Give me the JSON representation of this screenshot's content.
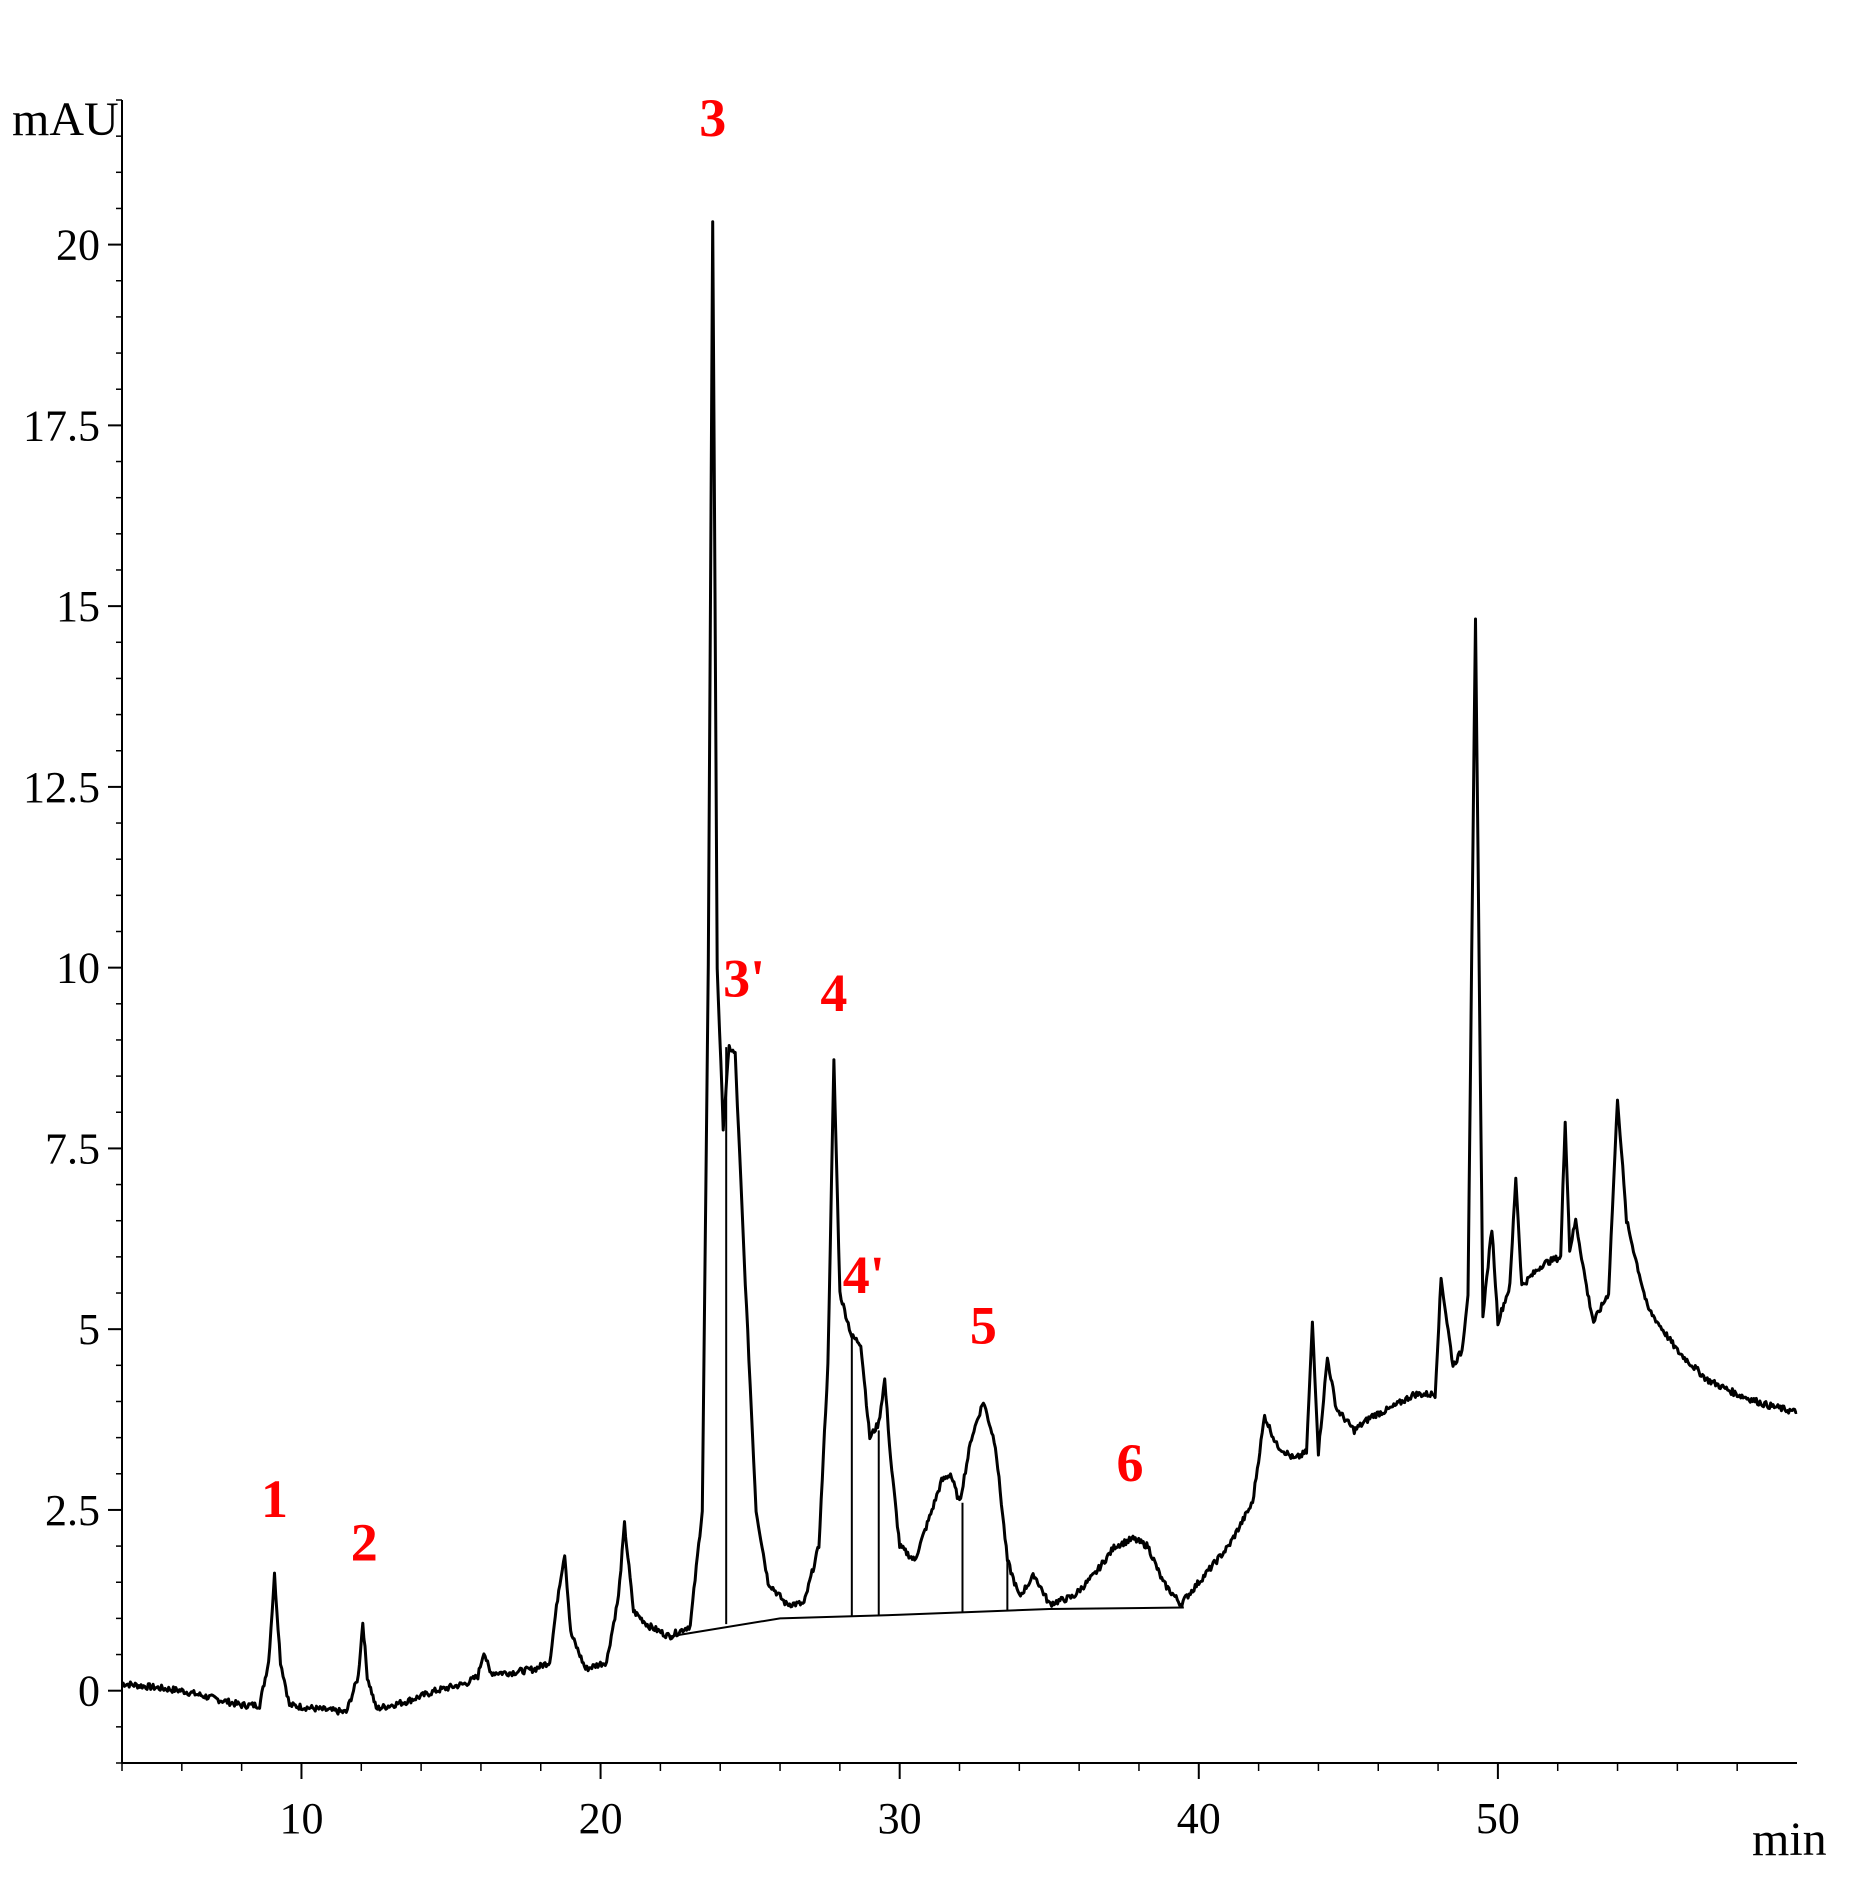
{
  "chart_data": {
    "type": "line",
    "ylabel": "mAU",
    "xlabel": "min",
    "xlim": [
      4,
      60
    ],
    "ylim": [
      -1,
      22
    ],
    "x_ticks": [
      10,
      20,
      30,
      40,
      50
    ],
    "y_ticks": [
      0,
      2.5,
      5,
      7.5,
      10,
      12.5,
      15,
      17.5,
      20
    ],
    "y_tick_labels": [
      "0",
      "2.5",
      "5",
      "7.5",
      "10",
      "12.5",
      "15",
      "17.5",
      "20"
    ],
    "line_color": "#000000",
    "label_color": "#ff0000",
    "series": [
      {
        "points": [
          [
            4,
            0.1
          ],
          [
            5,
            0.05
          ],
          [
            6,
            0.0
          ],
          [
            7,
            -0.1
          ],
          [
            8,
            -0.2
          ],
          [
            8.6,
            -0.2
          ],
          [
            8.9,
            0.4
          ],
          [
            9.1,
            1.6
          ],
          [
            9.3,
            0.4
          ],
          [
            9.6,
            -0.2
          ],
          [
            10.5,
            -0.25
          ],
          [
            11.5,
            -0.3
          ],
          [
            11.9,
            0.2
          ],
          [
            12.05,
            0.95
          ],
          [
            12.2,
            0.2
          ],
          [
            12.5,
            -0.25
          ],
          [
            13.5,
            -0.15
          ],
          [
            14.5,
            0.0
          ],
          [
            15.5,
            0.1
          ],
          [
            15.9,
            0.2
          ],
          [
            16.1,
            0.55
          ],
          [
            16.3,
            0.25
          ],
          [
            17,
            0.25
          ],
          [
            17.8,
            0.3
          ],
          [
            18.3,
            0.4
          ],
          [
            18.6,
            1.4
          ],
          [
            18.8,
            1.9
          ],
          [
            19.0,
            0.8
          ],
          [
            19.5,
            0.3
          ],
          [
            20.2,
            0.4
          ],
          [
            20.6,
            1.3
          ],
          [
            20.8,
            2.3
          ],
          [
            21.1,
            1.1
          ],
          [
            21.6,
            0.9
          ],
          [
            22.3,
            0.75
          ],
          [
            23,
            0.9
          ],
          [
            23.4,
            2.5
          ],
          [
            23.6,
            10
          ],
          [
            23.75,
            20.3
          ],
          [
            23.9,
            10
          ],
          [
            24.1,
            7.8
          ],
          [
            24.3,
            8.9
          ],
          [
            24.5,
            8.8
          ],
          [
            24.8,
            6
          ],
          [
            25.2,
            2.5
          ],
          [
            25.6,
            1.5
          ],
          [
            26.2,
            1.2
          ],
          [
            26.8,
            1.2
          ],
          [
            27.3,
            2
          ],
          [
            27.6,
            4.5
          ],
          [
            27.8,
            8.7
          ],
          [
            28.0,
            5.5
          ],
          [
            28.4,
            4.9
          ],
          [
            28.7,
            4.8
          ],
          [
            29.0,
            3.5
          ],
          [
            29.3,
            3.7
          ],
          [
            29.5,
            4.3
          ],
          [
            29.7,
            3.2
          ],
          [
            30.0,
            2.0
          ],
          [
            30.5,
            1.8
          ],
          [
            31,
            2.4
          ],
          [
            31.4,
            2.9
          ],
          [
            31.7,
            3.0
          ],
          [
            32.0,
            2.6
          ],
          [
            32.4,
            3.5
          ],
          [
            32.8,
            4.0
          ],
          [
            33.2,
            3.4
          ],
          [
            33.6,
            1.8
          ],
          [
            34.0,
            1.3
          ],
          [
            34.5,
            1.6
          ],
          [
            35.0,
            1.2
          ],
          [
            35.8,
            1.3
          ],
          [
            36.5,
            1.6
          ],
          [
            37.2,
            2.0
          ],
          [
            37.8,
            2.1
          ],
          [
            38.3,
            2.0
          ],
          [
            38.8,
            1.5
          ],
          [
            39.4,
            1.2
          ],
          [
            40,
            1.5
          ],
          [
            41,
            2.0
          ],
          [
            41.8,
            2.6
          ],
          [
            42.2,
            3.8
          ],
          [
            42.6,
            3.4
          ],
          [
            43.2,
            3.2
          ],
          [
            43.6,
            3.3
          ],
          [
            43.8,
            5.1
          ],
          [
            44.0,
            3.3
          ],
          [
            44.3,
            4.6
          ],
          [
            44.6,
            3.9
          ],
          [
            45.2,
            3.6
          ],
          [
            45.8,
            3.8
          ],
          [
            46.4,
            3.9
          ],
          [
            47.2,
            4.1
          ],
          [
            47.9,
            4.1
          ],
          [
            48.1,
            5.7
          ],
          [
            48.5,
            4.5
          ],
          [
            48.8,
            4.7
          ],
          [
            49.0,
            5.5
          ],
          [
            49.25,
            14.8
          ],
          [
            49.5,
            5.2
          ],
          [
            49.8,
            6.4
          ],
          [
            50.0,
            5.1
          ],
          [
            50.4,
            5.6
          ],
          [
            50.6,
            7.1
          ],
          [
            50.8,
            5.6
          ],
          [
            51.5,
            5.9
          ],
          [
            52.1,
            6.0
          ],
          [
            52.25,
            7.9
          ],
          [
            52.4,
            6.1
          ],
          [
            52.6,
            6.5
          ],
          [
            53.0,
            5.5
          ],
          [
            53.2,
            5.1
          ],
          [
            53.7,
            5.5
          ],
          [
            54.0,
            8.2
          ],
          [
            54.3,
            6.5
          ],
          [
            55,
            5.3
          ],
          [
            56,
            4.7
          ],
          [
            57,
            4.3
          ],
          [
            58,
            4.1
          ],
          [
            59,
            3.95
          ],
          [
            60,
            3.85
          ]
        ]
      }
    ],
    "integration_baseline": [
      [
        22.3,
        0.75
      ],
      [
        26,
        1.0
      ],
      [
        30,
        1.05
      ],
      [
        35,
        1.13
      ],
      [
        39.5,
        1.15
      ]
    ],
    "drop_lines": [
      [
        24.2,
        0.92,
        8.9
      ],
      [
        28.4,
        1.04,
        4.9
      ],
      [
        29.3,
        1.05,
        3.6
      ],
      [
        32.1,
        1.09,
        2.6
      ],
      [
        33.6,
        1.1,
        1.8
      ]
    ],
    "annotations": [
      {
        "text": "1",
        "x": 9.1,
        "y": 2.4
      },
      {
        "text": "2",
        "x": 12.1,
        "y": 1.8
      },
      {
        "text": "3",
        "x": 23.75,
        "y": 21.5
      },
      {
        "text": "3'",
        "x": 24.8,
        "y": 9.6
      },
      {
        "text": "4",
        "x": 27.8,
        "y": 9.4
      },
      {
        "text": "4'",
        "x": 28.8,
        "y": 5.5
      },
      {
        "text": "5",
        "x": 32.8,
        "y": 4.8
      },
      {
        "text": "6",
        "x": 37.7,
        "y": 2.9
      }
    ]
  }
}
